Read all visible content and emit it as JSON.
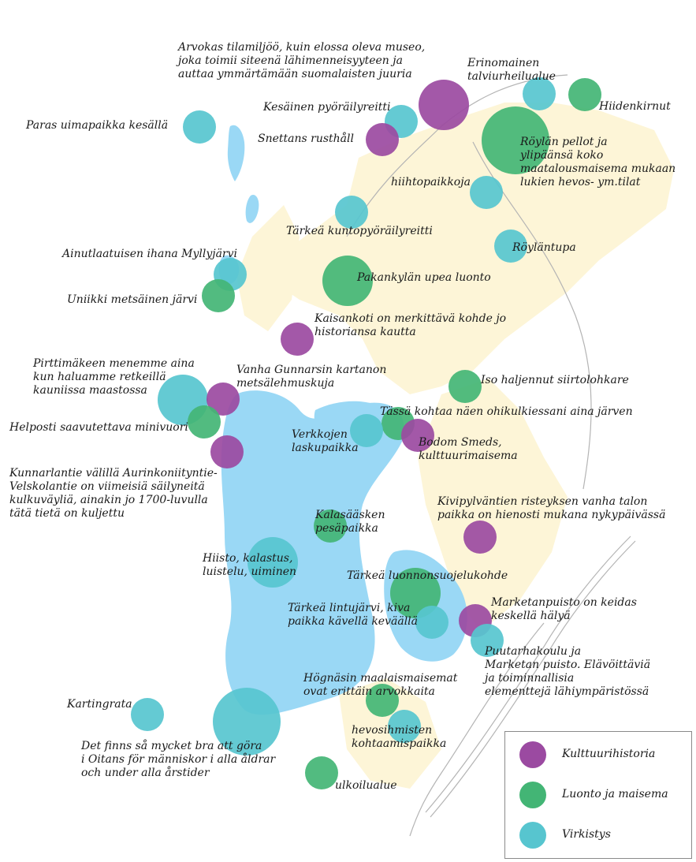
{
  "colors": {
    "kulttuurihistoria": "#9b4aa1",
    "luonto": "#43b575",
    "virkistys": "#57c5cf",
    "water": "#9ad8f5",
    "land": "#fdf5d7",
    "roads": "#b4b4b4"
  },
  "labels": {
    "arvokas": "Arvokas tilamiljöö, kuin elossa oleva museo,\njoka toimii siteenä lähimenneisyyteen ja\nauttaa ymmärtämään suomalaisten juuria",
    "erinomainen": "Erinomainen\ntalviurheilualue",
    "hiidenkirnut": "Hiidenkirnut",
    "kesainen": "Kesäinen pyöräilyreitti",
    "paras": "Paras uimapaikka kesällä",
    "snettans": "Snettans rusthåll",
    "roylan_pellot": "Röylän pellot ja\nylipäänsä koko\nmaatalousmaisema mukaan\nlukien hevos- ym.tilat",
    "hiihtopaikkoja": "hiihtopaikkoja",
    "tarkea_kunto": "Tärkeä kuntopyöräilyreitti",
    "roylantupa": "Röyläntupa",
    "ainutlaatuisen": "Ainutlaatuisen ihana Myllyjärvi",
    "pakankylan": "Pakankylän upea luonto",
    "uniikki": "Uniikki metsäinen järvi",
    "kaisankoti": "Kaisankoti on merkittävä kohde jo\nhistoriansa kautta",
    "pirttimakeen": "Pirttimäkeen menemme aina\nkun haluamme retkeillä\nkauniissa maastossa",
    "vanha_gunnarsin": "Vanha Gunnarsin kartanon\nmetsälehmuskuja",
    "iso_haljennut": "Iso haljennut siirtolohkare",
    "tassa_kohtaa": "Tässä kohtaa näen ohikulkiessani aina järven",
    "helposti": "Helposti saavutettava minivuori",
    "verkkojen": "Verkkojen\nlaskupaikka",
    "bodom": "Bodom Smeds,\nkulttuurimaisema",
    "kunnarlantie": "Kunnarlantie välillä Aurinkoniityntie-\nVelskolantie on viimeisiä säilyneitä\nkulkuväyliä, ainakin jo 1700-luvulla\ntätä tietä on kuljettu",
    "kivipylvaantien": "Kivipylväntien risteyksen vanha talon\npaikka on hienosti mukana nykypäivässä",
    "kalasaasken": "Kalasääsken\npesäpaikka",
    "hiisto": "Hiisto, kalastus,\nluistelu, uiminen",
    "tarkea_luonnon": "Tärkeä luonnonsuojelukohde",
    "tarkea_lintu": "Tärkeä lintujärvi, kiva\npaikka kävellä keväällä",
    "marketanpuisto": "Marketanpuisto on keidas\nkeskellä hälyä",
    "puutarhakoulu": "Puutarhakoulu ja\nMarketan puisto. Elävöittäviä\nja toiminnallisia\nelementtejä lähiympäristössä",
    "hognasin": "Högnäsin maalaismaisemat\novat erittäin arvokkaita",
    "kartingrata": "Kartingrata",
    "hevosihmisten": "hevosihmisten\nkohtaamispaikka",
    "det_finns": "Det finns så mycket bra att göra\ni Oitans för människor i alla åldrar\noch under alla årstider",
    "ulkoilualue": "ulkoilualue"
  },
  "legend": {
    "kulttuurihistoria": "Kulttuurihistoria",
    "luonto": "Luonto ja maisema",
    "virkistys": "Virkistys"
  }
}
